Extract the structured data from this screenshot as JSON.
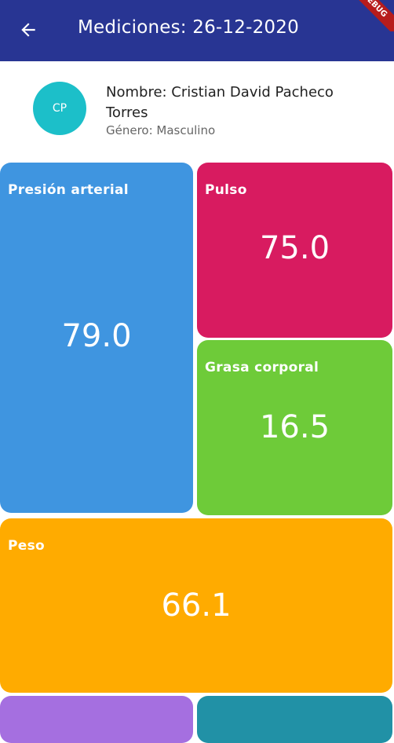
{
  "appbar": {
    "title": "Mediciones: 26-12-2020",
    "back_icon": "arrow-back-icon",
    "ribbon_text": "DEBUG",
    "background": "#283593"
  },
  "profile": {
    "initials": "CP",
    "name": "Nombre: Cristian David Pacheco Torres",
    "gender": "Género: Masculino",
    "avatar_color": "#1cbfc9"
  },
  "tiles": {
    "presion": {
      "label": "Presión arterial",
      "value": "79.0",
      "color": "#3f95e0"
    },
    "pulso": {
      "label": "Pulso",
      "value": "75.0",
      "color": "#d81b60"
    },
    "grasa": {
      "label": "Grasa corporal",
      "value": "16.5",
      "color": "#6ecb39"
    },
    "peso": {
      "label": "Peso",
      "value": "66.1",
      "color": "#ffab00"
    },
    "extra1": {
      "color": "#a56fe0"
    },
    "extra2": {
      "color": "#2191a6"
    }
  }
}
